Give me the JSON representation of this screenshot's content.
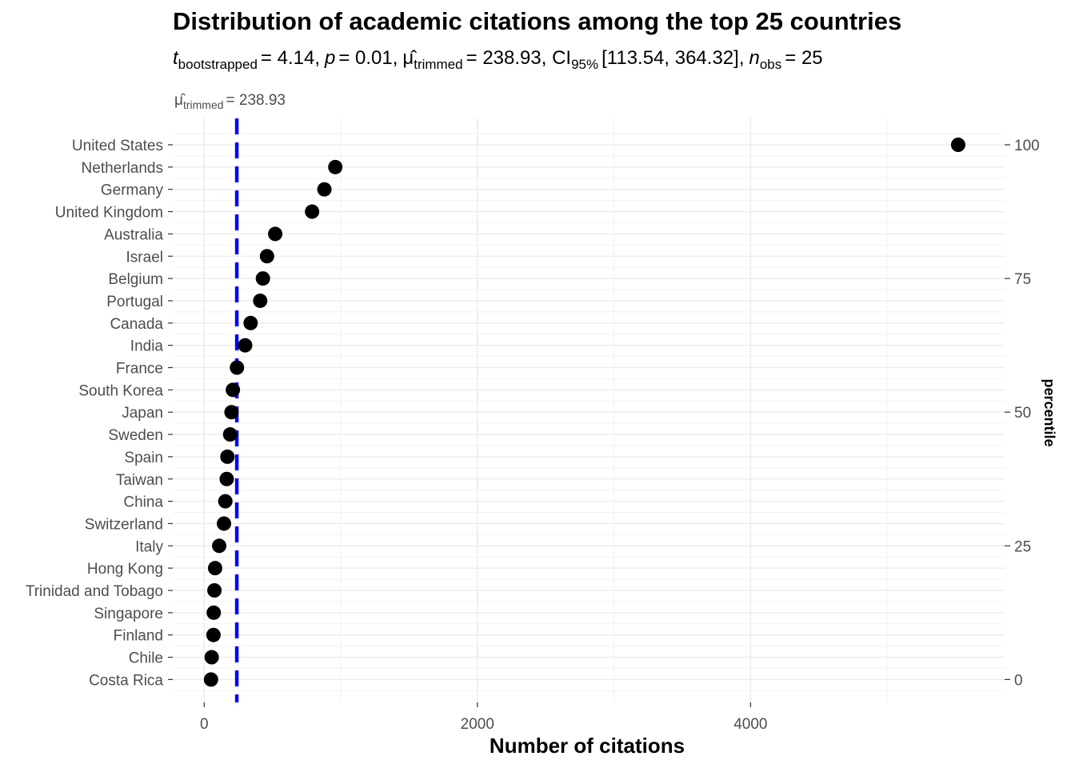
{
  "chart_data": {
    "type": "scatter",
    "title": "Distribution of academic citations among the top 25 countries",
    "subtitle": {
      "t_symbol": "t",
      "t_sub": "bootstrapped",
      "t_value": "= 4.14,",
      "p_symbol": "p",
      "p_value": "= 0.01,",
      "mu_hat": "μ̂",
      "mu_sub": "trimmed",
      "mu_value": "= 238.93, CI",
      "ci_sub": "95%",
      "ci_value": "[113.54, 364.32],",
      "n_symbol": "n",
      "n_sub": "obs",
      "n_value": "= 25"
    },
    "mean_annotation": {
      "mu_hat": "μ̂",
      "sub": "trimmed",
      "value_text": "= 238.93",
      "value": 238.93
    },
    "xlabel": "Number of citations",
    "secondary_ylabel": "percentile",
    "xlim": [
      -230,
      5860
    ],
    "x_ticks": [
      0,
      2000,
      4000
    ],
    "x_tick_labels": [
      "0",
      "2000",
      "4000"
    ],
    "x_minor_gridlines": [
      1000,
      3000,
      5000
    ],
    "secondary_y_ticks": [
      100,
      75,
      50,
      25,
      0
    ],
    "secondary_y_tick_labels": [
      "100",
      "75",
      "50",
      "25",
      "0"
    ],
    "grid": true,
    "legend": "none",
    "colors": {
      "points": "#000000",
      "mean_line": "#0000ff",
      "grid_major": "#ebebeb",
      "grid_minor": "#f2f2f2",
      "tick_text": "#4d4d4d"
    },
    "categories": [
      "United States",
      "Netherlands",
      "Germany",
      "United Kingdom",
      "Australia",
      "Israel",
      "Belgium",
      "Portugal",
      "Canada",
      "India",
      "France",
      "South Korea",
      "Japan",
      "Sweden",
      "Spain",
      "Taiwan",
      "China",
      "Switzerland",
      "Italy",
      "Hong Kong",
      "Trinidad and Tobago",
      "Singapore",
      "Finland",
      "Chile",
      "Costa Rica"
    ],
    "values": [
      5520,
      960,
      880,
      790,
      520,
      460,
      430,
      410,
      340,
      300,
      240,
      210,
      200,
      190,
      170,
      165,
      155,
      145,
      110,
      80,
      75,
      70,
      68,
      55,
      50
    ]
  }
}
